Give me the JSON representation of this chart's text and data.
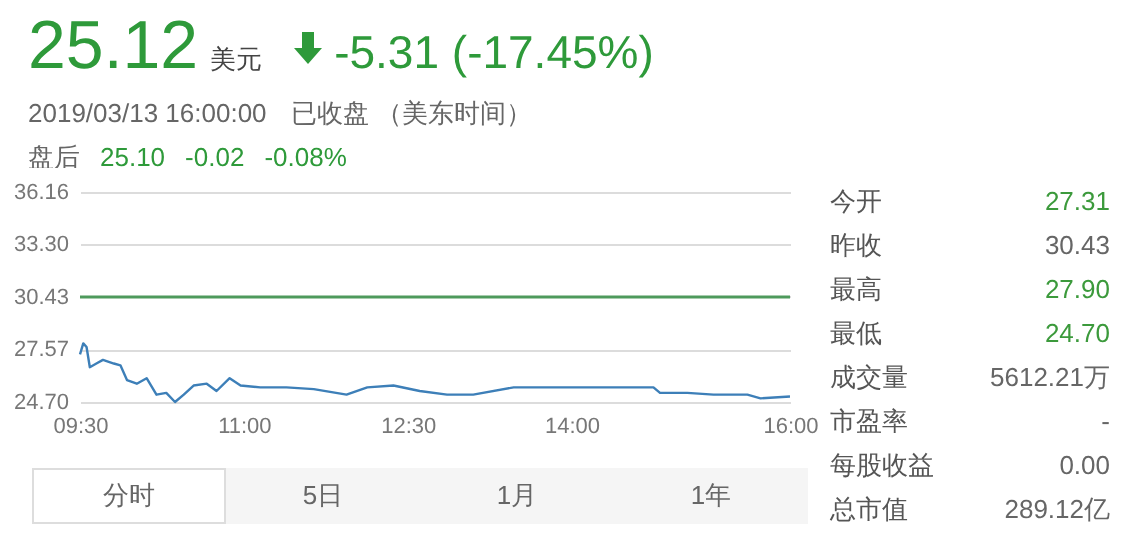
{
  "chart_data": [
    {
      "type": "other",
      "annotations": [
        "25.12",
        "美元",
        "-5.31 (-17.45%)",
        "2019/03/13 16:00:00",
        "已收盘 （美东时间）",
        "盘后",
        "25.10",
        "-0.02",
        "-0.08%"
      ]
    },
    {
      "type": "line",
      "x": [
        9.5,
        9.53,
        9.56,
        9.59,
        9.65,
        9.71,
        9.81,
        9.87,
        9.93,
        10.02,
        10.11,
        10.2,
        10.29,
        10.37,
        10.45,
        10.54,
        10.66,
        10.75,
        10.87,
        10.97,
        11.15,
        11.39,
        11.64,
        11.94,
        12.13,
        12.37,
        12.61,
        12.86,
        13.1,
        13.47,
        13.77,
        14.08,
        14.38,
        14.75,
        14.81,
        15.06,
        15.3,
        15.61,
        15.73,
        16
      ],
      "series": [
        {
          "color": "#3d7fb8",
          "values": [
            27.3,
            27.9,
            27.7,
            26.6,
            26.8,
            27.0,
            26.8,
            26.7,
            25.9,
            25.7,
            26.0,
            25.1,
            25.2,
            24.7,
            25.1,
            25.6,
            25.7,
            25.3,
            26.0,
            25.6,
            25.5,
            25.5,
            25.4,
            25.1,
            25.5,
            25.6,
            25.3,
            25.1,
            25.1,
            25.5,
            25.5,
            25.5,
            25.5,
            25.5,
            25.2,
            25.2,
            25.1,
            25.1,
            24.9,
            25.0
          ]
        }
      ],
      "xlim": [
        9.5,
        16
      ],
      "xticks": [
        {
          "value": 9.5,
          "label": "09:30"
        },
        {
          "value": 11,
          "label": "11:00"
        },
        {
          "value": 12.5,
          "label": "12:30"
        },
        {
          "value": 14,
          "label": "14:00"
        },
        {
          "value": 16,
          "label": "16:00"
        }
      ],
      "ylim": [
        24.7,
        36.16
      ],
      "yticks": [
        {
          "value": 24.7,
          "label": "24.70"
        },
        {
          "value": 27.57,
          "label": "27.57"
        },
        {
          "value": 30.43,
          "label": "30.43"
        },
        {
          "value": 33.3,
          "label": "33.30"
        },
        {
          "value": 36.16,
          "label": "36.16"
        }
      ],
      "ref_lines": [
        {
          "axis": "y",
          "value": 30.43,
          "color": "#4e9a5c"
        }
      ],
      "grid": "y",
      "marker": "none",
      "line_style": "solid"
    },
    {
      "type": "other",
      "categories": [
        "今开",
        "昨收",
        "最高",
        "最低",
        "成交量",
        "市盈率",
        "每股收益",
        "总市值"
      ],
      "value_labels": [
        "27.31",
        "30.43",
        "27.90",
        "24.70",
        "5612.21万",
        "-",
        "0.00",
        "289.12亿"
      ],
      "colors": [
        "#3c9a3c",
        "#666666",
        "#3c9a3c",
        "#3c9a3c",
        "#666666",
        "#666666",
        "#666666",
        "#666666"
      ]
    },
    {
      "type": "other",
      "categories": [
        "分时",
        "5日",
        "1月",
        "1年"
      ]
    }
  ]
}
